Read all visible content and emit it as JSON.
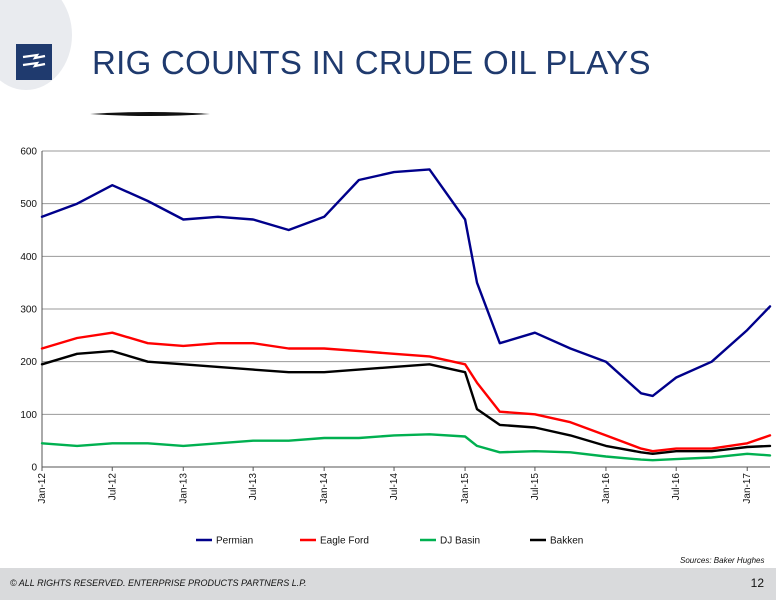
{
  "slide": {
    "title": "RIG COUNTS IN CRUDE OIL PLAYS",
    "source": "Sources: Baker Hughes",
    "footer": "© ALL RIGHTS RESERVED. ENTERPRISE PRODUCTS PARTNERS L.P.",
    "page_number": "12",
    "colors": {
      "brand": "#1f3a6e",
      "footer_bg": "#d9dadc"
    }
  },
  "chart_data": {
    "type": "line",
    "title": "",
    "xlabel": "",
    "ylabel": "",
    "ylim": [
      0,
      600
    ],
    "yticks": [
      0,
      100,
      200,
      300,
      400,
      500,
      600
    ],
    "xticks": [
      "Jan-12",
      "Jul-12",
      "Jan-13",
      "Jul-13",
      "Jan-14",
      "Jul-14",
      "Jan-15",
      "Jul-15",
      "Jan-16",
      "Jul-16",
      "Jan-17"
    ],
    "x_dates": [
      "2012-01",
      "2012-04",
      "2012-07",
      "2012-10",
      "2013-01",
      "2013-04",
      "2013-07",
      "2013-10",
      "2014-01",
      "2014-04",
      "2014-07",
      "2014-10",
      "2015-01",
      "2015-02",
      "2015-04",
      "2015-07",
      "2015-10",
      "2016-01",
      "2016-04",
      "2016-05",
      "2016-07",
      "2016-10",
      "2017-01",
      "2017-03"
    ],
    "legend_position": "bottom",
    "grid": true,
    "series": [
      {
        "name": "Permian",
        "color": "#00008b",
        "values": [
          475,
          500,
          535,
          505,
          470,
          475,
          470,
          450,
          475,
          545,
          560,
          565,
          470,
          350,
          235,
          255,
          225,
          200,
          140,
          135,
          170,
          200,
          260,
          305
        ]
      },
      {
        "name": "Eagle Ford",
        "color": "#ff0000",
        "values": [
          225,
          245,
          255,
          235,
          230,
          235,
          235,
          225,
          225,
          220,
          215,
          210,
          195,
          160,
          105,
          100,
          85,
          60,
          35,
          30,
          35,
          35,
          45,
          60
        ]
      },
      {
        "name": "DJ Basin",
        "color": "#00b050",
        "values": [
          45,
          40,
          45,
          45,
          40,
          45,
          50,
          50,
          55,
          55,
          60,
          62,
          58,
          40,
          28,
          30,
          28,
          20,
          14,
          13,
          15,
          18,
          25,
          22
        ]
      },
      {
        "name": "Bakken",
        "color": "#000000",
        "values": [
          195,
          215,
          220,
          200,
          195,
          190,
          185,
          180,
          180,
          185,
          190,
          195,
          180,
          110,
          80,
          75,
          60,
          40,
          28,
          25,
          30,
          30,
          38,
          40
        ]
      }
    ]
  }
}
